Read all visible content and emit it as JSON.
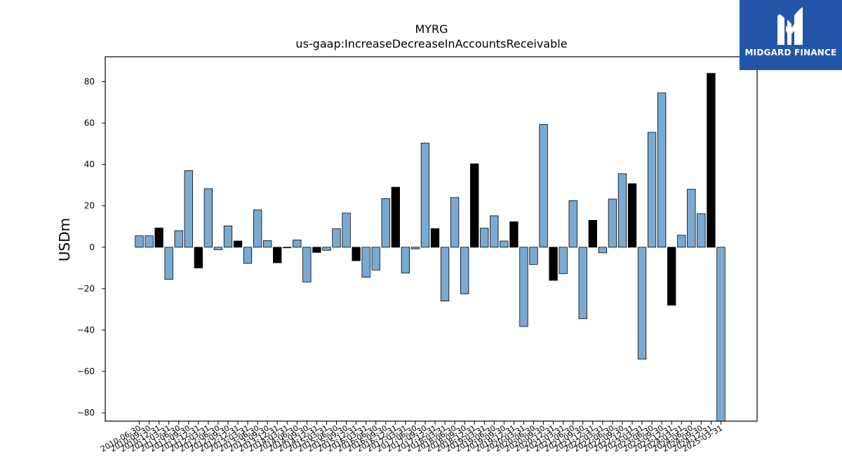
{
  "chart_data": {
    "type": "bar",
    "title": "MYRG",
    "subtitle": "us-gaap:IncreaseDecreaseInAccountsReceivable",
    "xlabel": "",
    "ylabel": "USDm",
    "ylim": [
      -84,
      92
    ],
    "yticks": [
      -80,
      -60,
      -40,
      -20,
      0,
      20,
      40,
      60,
      80
    ],
    "grid": false,
    "legend": "none",
    "colors": {
      "quarter": "#7aaad2",
      "fiscal_year": "#000000",
      "edge": "#000000"
    },
    "categories": [
      "2010-06-30",
      "2010-09-30",
      "2010-12-31",
      "2011-03-31",
      "2011-06-30",
      "2011-09-30",
      "2011-12-31",
      "2012-03-31",
      "2012-06-30",
      "2012-09-30",
      "2012-12-31",
      "2013-03-31",
      "2013-06-30",
      "2013-09-30",
      "2013-12-31",
      "2014-03-31",
      "2014-06-30",
      "2014-09-30",
      "2014-12-31",
      "2015-03-31",
      "2015-06-30",
      "2015-09-30",
      "2015-12-31",
      "2016-03-31",
      "2016-06-30",
      "2016-09-30",
      "2016-12-31",
      "2017-03-31",
      "2017-06-30",
      "2017-09-30",
      "2017-12-31",
      "2018-03-31",
      "2018-06-30",
      "2018-09-30",
      "2018-12-31",
      "2019-03-31",
      "2019-06-30",
      "2019-09-30",
      "2019-12-31",
      "2020-03-31",
      "2020-06-30",
      "2020-09-30",
      "2020-12-31",
      "2021-03-31",
      "2021-06-30",
      "2021-09-30",
      "2021-12-31",
      "2022-03-31",
      "2022-06-30",
      "2022-09-30",
      "2022-12-31",
      "2023-03-31",
      "2023-06-30",
      "2023-09-30",
      "2023-12-31",
      "2024-03-31",
      "2024-06-30",
      "2024-09-30",
      "2024-12-31",
      "2025-03-31"
    ],
    "values": [
      5.5,
      5.5,
      9.3,
      -15.5,
      8.0,
      37.0,
      -10.0,
      28.3,
      -1.2,
      10.3,
      3.0,
      -7.8,
      18.0,
      3.2,
      -7.5,
      -0.3,
      3.5,
      -16.8,
      -2.5,
      -1.5,
      9.0,
      16.5,
      -6.5,
      -14.5,
      -11.0,
      23.5,
      29.0,
      -12.5,
      -0.8,
      50.3,
      9.0,
      -26.0,
      24.0,
      -22.5,
      40.3,
      9.2,
      15.2,
      3.0,
      12.3,
      -38.3,
      -8.3,
      59.3,
      -16.0,
      -12.7,
      22.5,
      -34.5,
      13.0,
      -2.7,
      23.3,
      35.5,
      30.7,
      -54.0,
      55.5,
      74.5,
      -28.0,
      5.8,
      28.0,
      16.2,
      84.0,
      -84.0
    ],
    "fiscal_year_flags": [
      0,
      0,
      1,
      0,
      0,
      0,
      1,
      0,
      0,
      0,
      1,
      0,
      0,
      0,
      1,
      0,
      0,
      0,
      1,
      0,
      0,
      0,
      1,
      0,
      0,
      0,
      1,
      0,
      0,
      0,
      1,
      0,
      0,
      0,
      1,
      0,
      0,
      0,
      1,
      0,
      0,
      0,
      1,
      0,
      0,
      0,
      1,
      0,
      0,
      0,
      1,
      0,
      0,
      0,
      1,
      0,
      0,
      0,
      1,
      0
    ]
  },
  "logo": {
    "text": "MIDGARD FINANCE",
    "icon": "midgard-m-icon"
  }
}
